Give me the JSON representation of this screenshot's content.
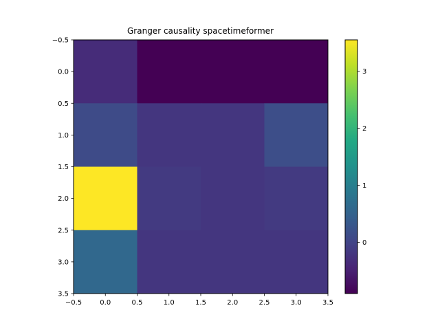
{
  "chart_data": {
    "type": "heatmap",
    "title": "Granger causality spacetimeformer",
    "xlabel": "",
    "ylabel": "",
    "x_extent": [
      -0.5,
      3.5
    ],
    "y_extent": [
      -0.5,
      3.5
    ],
    "x_ticks": [
      -0.5,
      0.0,
      0.5,
      1.0,
      1.5,
      2.0,
      2.5,
      3.0,
      3.5
    ],
    "x_tick_labels": [
      "−0.5",
      "0.0",
      "0.5",
      "1.0",
      "1.5",
      "2.0",
      "2.5",
      "3.0",
      "3.5"
    ],
    "y_ticks": [
      -0.5,
      0.0,
      0.5,
      1.0,
      1.5,
      2.0,
      2.5,
      3.0,
      3.5
    ],
    "y_tick_labels": [
      "−0.5",
      "0.0",
      "0.5",
      "1.0",
      "1.5",
      "2.0",
      "2.5",
      "3.0",
      "3.5"
    ],
    "y_inverted": true,
    "colormap": "viridis",
    "color_range": [
      -0.9,
      3.55
    ],
    "colorbar_ticks": [
      0,
      1,
      2,
      3
    ],
    "colorbar_tick_labels": [
      "0",
      "1",
      "2",
      "3"
    ],
    "matrix": [
      [
        -0.35,
        -0.9,
        -0.9,
        -0.9
      ],
      [
        0.1,
        -0.2,
        -0.2,
        0.15
      ],
      [
        3.55,
        -0.15,
        -0.2,
        -0.15
      ],
      [
        0.6,
        -0.2,
        -0.2,
        -0.2
      ]
    ]
  }
}
